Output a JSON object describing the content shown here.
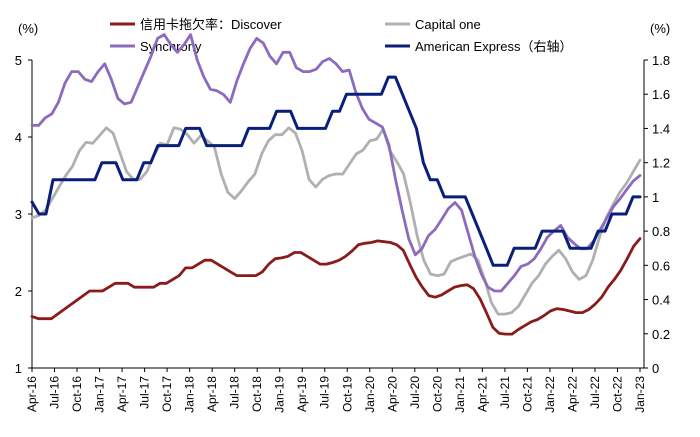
{
  "chart_data": {
    "type": "line",
    "title": "",
    "unit_left": "(%)",
    "unit_right": "(%)",
    "ylim_left": [
      1,
      5
    ],
    "ylim_right": [
      0,
      1.8
    ],
    "yticks_left": [
      1,
      2,
      3,
      4,
      5
    ],
    "yticks_right": [
      0,
      0.2,
      0.4,
      0.6,
      0.8,
      1,
      1.2,
      1.4,
      1.6,
      1.8
    ],
    "ytick_labels_left": [
      "1",
      "2",
      "3",
      "4",
      "5"
    ],
    "ytick_labels_right": [
      "0",
      "0.2",
      "0.4",
      "0.6",
      "0.8",
      "1",
      "1.2",
      "1.4",
      "1.6",
      "1.8"
    ],
    "x_start": "Apr-16",
    "x_end": "Jan-23",
    "xtick_labels": [
      "Apr-16",
      "Jul-16",
      "Oct-16",
      "Jan-17",
      "Apr-17",
      "Jul-17",
      "Oct-17",
      "Jan-18",
      "Apr-18",
      "Jul-18",
      "Oct-18",
      "Jan-19",
      "Apr-19",
      "Jul-19",
      "Oct-19",
      "Jan-20",
      "Apr-20",
      "Jul-20",
      "Oct-20",
      "Jan-21",
      "Apr-21",
      "Jul-21",
      "Oct-21",
      "Jan-22",
      "Apr-22",
      "Jul-22",
      "Oct-22",
      "Jan-23"
    ],
    "series": [
      {
        "name": "信用卡拖欠率：Discover",
        "color": "#8B1A1A",
        "axis": "left",
        "values": [
          1.67,
          1.64,
          1.64,
          1.64,
          1.7,
          1.76,
          1.82,
          1.88,
          1.94,
          2.0,
          2.0,
          2.0,
          2.05,
          2.1,
          2.1,
          2.1,
          2.05,
          2.05,
          2.05,
          2.05,
          2.1,
          2.1,
          2.15,
          2.2,
          2.3,
          2.3,
          2.35,
          2.4,
          2.4,
          2.35,
          2.3,
          2.25,
          2.2,
          2.2,
          2.2,
          2.2,
          2.25,
          2.35,
          2.42,
          2.43,
          2.45,
          2.5,
          2.5,
          2.45,
          2.4,
          2.35,
          2.35,
          2.37,
          2.4,
          2.45,
          2.52,
          2.6,
          2.62,
          2.63,
          2.65,
          2.64,
          2.63,
          2.6,
          2.53,
          2.35,
          2.18,
          2.05,
          1.94,
          1.92,
          1.95,
          2.0,
          2.05,
          2.07,
          2.08,
          2.03,
          1.9,
          1.72,
          1.53,
          1.45,
          1.44,
          1.44,
          1.5,
          1.55,
          1.6,
          1.63,
          1.68,
          1.74,
          1.77,
          1.76,
          1.74,
          1.72,
          1.72,
          1.76,
          1.83,
          1.92,
          2.05,
          2.15,
          2.27,
          2.42,
          2.58,
          2.68
        ]
      },
      {
        "name": "Capital one",
        "color": "#B0B0B0",
        "axis": "left",
        "values": [
          2.95,
          2.98,
          3.05,
          3.2,
          3.35,
          3.5,
          3.62,
          3.82,
          3.93,
          3.92,
          4.02,
          4.12,
          4.05,
          3.8,
          3.55,
          3.45,
          3.45,
          3.55,
          3.75,
          3.92,
          3.9,
          4.12,
          4.1,
          4.03,
          3.92,
          4.02,
          3.95,
          3.87,
          3.52,
          3.28,
          3.2,
          3.3,
          3.42,
          3.52,
          3.78,
          3.95,
          4.03,
          4.03,
          4.12,
          4.05,
          3.82,
          3.45,
          3.35,
          3.45,
          3.5,
          3.52,
          3.52,
          3.65,
          3.78,
          3.83,
          3.95,
          3.97,
          4.1,
          3.82,
          3.68,
          3.52,
          3.15,
          2.72,
          2.4,
          2.22,
          2.2,
          2.22,
          2.38,
          2.42,
          2.45,
          2.48,
          2.4,
          2.15,
          1.85,
          1.7,
          1.7,
          1.72,
          1.8,
          1.95,
          2.1,
          2.2,
          2.35,
          2.45,
          2.53,
          2.42,
          2.25,
          2.15,
          2.2,
          2.4,
          2.7,
          2.95,
          3.12,
          3.28,
          3.4,
          3.55,
          3.7
        ]
      },
      {
        "name": "Synchrony",
        "color": "#8C6BBF",
        "axis": "left",
        "values": [
          4.15,
          4.15,
          4.25,
          4.3,
          4.45,
          4.7,
          4.85,
          4.85,
          4.75,
          4.72,
          4.85,
          4.95,
          4.75,
          4.5,
          4.43,
          4.45,
          4.65,
          4.85,
          5.05,
          5.28,
          5.33,
          5.2,
          5.1,
          5.2,
          5.33,
          5.0,
          4.78,
          4.62,
          4.6,
          4.55,
          4.45,
          4.73,
          4.95,
          5.15,
          5.28,
          5.22,
          5.05,
          4.95,
          5.1,
          5.1,
          4.9,
          4.85,
          4.85,
          4.88,
          4.98,
          5.02,
          4.95,
          4.85,
          4.87,
          4.58,
          4.37,
          4.23,
          4.18,
          4.13,
          3.9,
          3.45,
          3.05,
          2.68,
          2.47,
          2.55,
          2.72,
          2.8,
          2.93,
          3.07,
          3.15,
          3.05,
          2.75,
          2.45,
          2.22,
          2.05,
          2.0,
          2.0,
          2.1,
          2.2,
          2.32,
          2.35,
          2.42,
          2.55,
          2.7,
          2.78,
          2.85,
          2.7,
          2.62,
          2.55,
          2.55,
          2.65,
          2.8,
          2.95,
          3.1,
          3.2,
          3.32,
          3.43,
          3.5
        ]
      },
      {
        "name": "American Express（右轴）",
        "color": "#0A1F7A",
        "axis": "right",
        "values": [
          0.97,
          0.9,
          0.9,
          1.1,
          1.1,
          1.1,
          1.1,
          1.1,
          1.1,
          1.1,
          1.2,
          1.2,
          1.2,
          1.1,
          1.1,
          1.1,
          1.2,
          1.2,
          1.3,
          1.3,
          1.3,
          1.3,
          1.4,
          1.4,
          1.4,
          1.3,
          1.3,
          1.3,
          1.3,
          1.3,
          1.3,
          1.4,
          1.4,
          1.4,
          1.4,
          1.5,
          1.5,
          1.5,
          1.4,
          1.4,
          1.4,
          1.4,
          1.4,
          1.5,
          1.5,
          1.6,
          1.6,
          1.6,
          1.6,
          1.6,
          1.6,
          1.7,
          1.7,
          1.6,
          1.5,
          1.4,
          1.2,
          1.1,
          1.1,
          1.0,
          1.0,
          1.0,
          1.0,
          0.9,
          0.8,
          0.7,
          0.6,
          0.6,
          0.6,
          0.7,
          0.7,
          0.7,
          0.7,
          0.8,
          0.8,
          0.8,
          0.8,
          0.7,
          0.7,
          0.7,
          0.7,
          0.8,
          0.8,
          0.9,
          0.9,
          0.9,
          1.0,
          1.0
        ]
      }
    ],
    "legend": [
      {
        "label": "信用卡拖欠率：Discover",
        "color": "#8B1A1A"
      },
      {
        "label": "Capital one",
        "color": "#B0B0B0"
      },
      {
        "label": "Synchrony",
        "color": "#8C6BBF"
      },
      {
        "label": "American Express（右轴）",
        "color": "#0A1F7A"
      }
    ],
    "legend_position": "top"
  }
}
